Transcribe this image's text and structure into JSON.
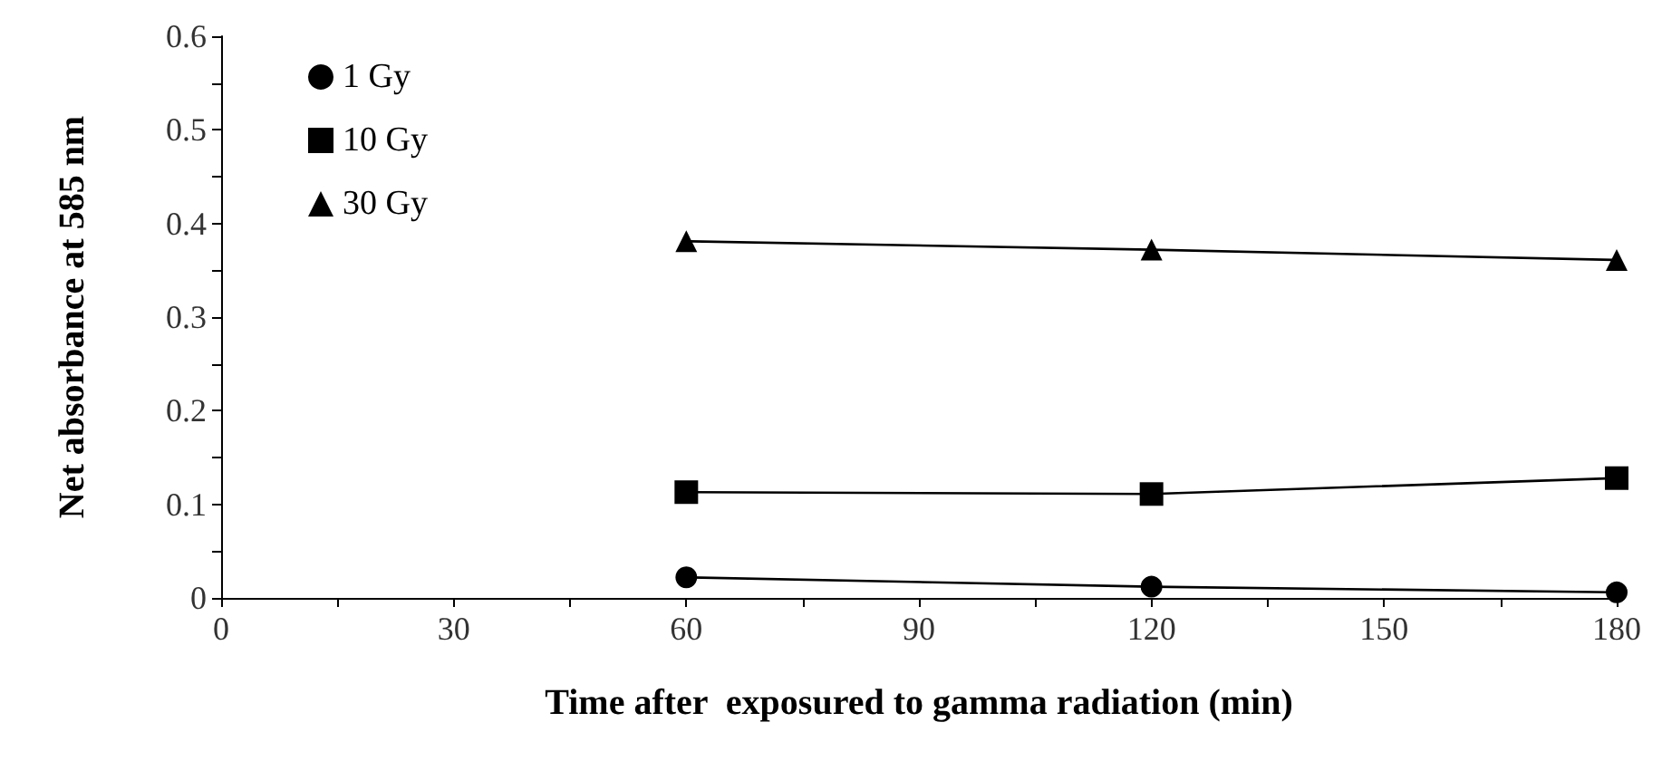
{
  "chart_data": {
    "type": "line",
    "xlabel": "Time after  exposured to gamma radiation (min)",
    "ylabel": "Net absorbance at 585 nm",
    "x": [
      60,
      120,
      180
    ],
    "series": [
      {
        "name": "1 Gy",
        "color": "#000000",
        "marker": "circle",
        "values": [
          0.022,
          0.012,
          0.006
        ]
      },
      {
        "name": "10 Gy",
        "color": "#000000",
        "marker": "square",
        "values": [
          0.113,
          0.111,
          0.128
        ]
      },
      {
        "name": "30 Gy",
        "color": "#000000",
        "marker": "triangle",
        "values": [
          0.381,
          0.372,
          0.361
        ]
      }
    ],
    "xlim": [
      0,
      180
    ],
    "xticks": [
      0,
      30,
      60,
      90,
      120,
      150,
      180
    ],
    "ylim": [
      0,
      0.6
    ],
    "yticks": [
      0,
      0.1,
      0.2,
      0.3,
      0.4,
      0.5,
      0.6
    ],
    "grid": false,
    "legend": "top left",
    "line_style": "solid"
  }
}
